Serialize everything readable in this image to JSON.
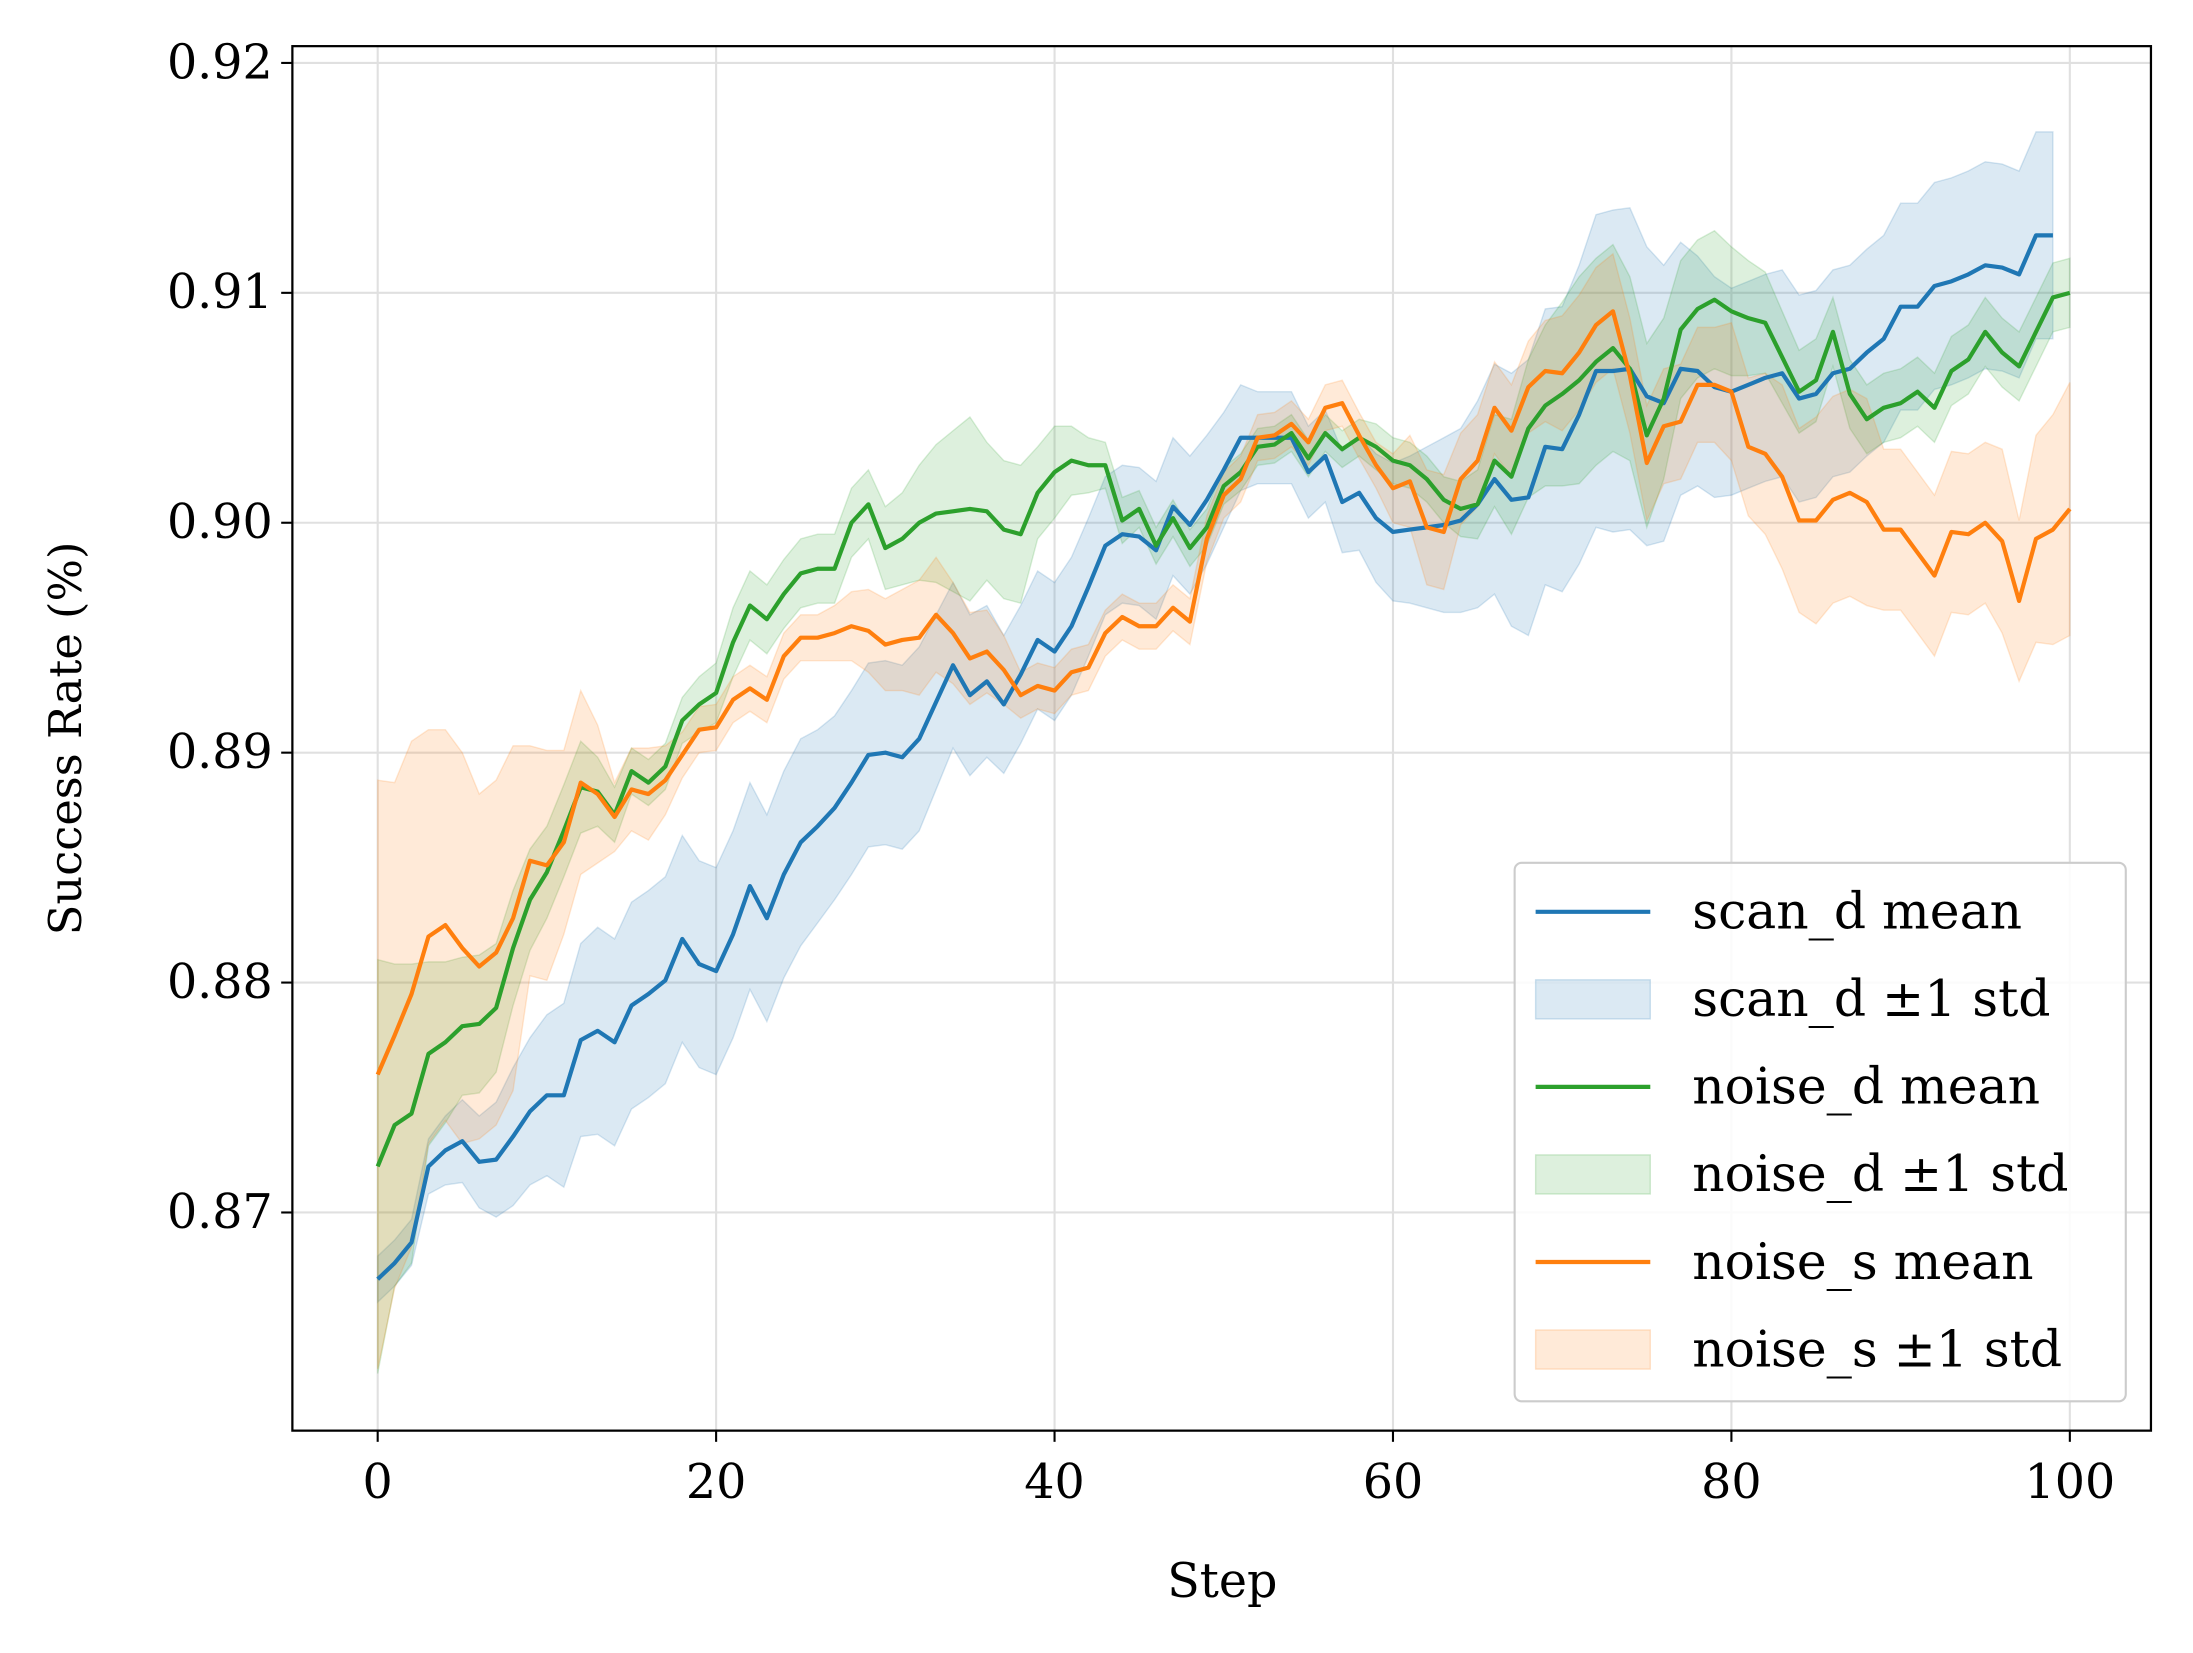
{
  "chart_data": {
    "type": "line",
    "xlabel": "Step",
    "ylabel": "Success Rate (%)",
    "xlim": [
      -5,
      105
    ],
    "ylim": [
      0.8605,
      0.9205
    ],
    "xticks": [
      0,
      20,
      40,
      60,
      80,
      100
    ],
    "xtick_labels": [
      "0",
      "20",
      "40",
      "60",
      "80",
      "100"
    ],
    "yticks": [
      0.87,
      0.88,
      0.89,
      0.9,
      0.91,
      0.92
    ],
    "ytick_labels": [
      "0.87",
      "0.88",
      "0.89",
      "0.90",
      "0.91",
      "0.92"
    ],
    "grid": true,
    "legend_position": "lower-right",
    "series": [
      {
        "name": "scan_d mean",
        "band_name": "scan_d ±1 std",
        "color": "#1f77b4",
        "mean": [
          0.8671,
          0.8678,
          0.8687,
          0.872,
          0.8727,
          0.8731,
          0.8722,
          0.8723,
          0.8733,
          0.8744,
          0.8751,
          0.8751,
          0.8775,
          0.8779,
          0.8774,
          0.879,
          0.8795,
          0.8801,
          0.8819,
          0.8808,
          0.8805,
          0.8821,
          0.8842,
          0.8828,
          0.8847,
          0.8861,
          0.8868,
          0.8876,
          0.8887,
          0.8899,
          0.89,
          0.8898,
          0.8906,
          0.8922,
          0.8938,
          0.8925,
          0.8931,
          0.8921,
          0.8934,
          0.8949,
          0.8944,
          0.8955,
          0.8972,
          0.899,
          0.8995,
          0.8994,
          0.8988,
          0.9007,
          0.8999,
          0.901,
          0.9023,
          0.9037,
          0.9037,
          0.9037,
          0.9037,
          0.9022,
          0.9029,
          0.9009,
          0.9013,
          0.9002,
          0.8996,
          0.8997,
          0.8998,
          0.8999,
          0.9001,
          0.9008,
          0.9019,
          0.901,
          0.9011,
          0.9033,
          0.9032,
          0.9047,
          0.9066,
          0.9066,
          0.9067,
          0.9055,
          0.9052,
          0.9067,
          0.9066,
          0.9059,
          0.9057,
          0.906,
          0.9063,
          0.9065,
          0.9054,
          0.9056,
          0.9065,
          0.9067,
          0.9074,
          0.908,
          0.9094,
          0.9094,
          0.9103,
          0.9105,
          0.9108,
          0.9112,
          0.9111,
          0.9108,
          0.9125,
          0.9125
        ],
        "std": [
          0.001,
          0.001,
          0.001,
          0.0012,
          0.0015,
          0.0018,
          0.002,
          0.0025,
          0.003,
          0.0032,
          0.0035,
          0.004,
          0.0042,
          0.0045,
          0.0045,
          0.0045,
          0.0045,
          0.0045,
          0.0045,
          0.0045,
          0.0045,
          0.0045,
          0.0045,
          0.0045,
          0.0045,
          0.0045,
          0.0042,
          0.004,
          0.004,
          0.004,
          0.004,
          0.004,
          0.004,
          0.0038,
          0.0036,
          0.0035,
          0.0033,
          0.003,
          0.003,
          0.003,
          0.003,
          0.003,
          0.003,
          0.003,
          0.003,
          0.003,
          0.003,
          0.003,
          0.003,
          0.0028,
          0.0025,
          0.0023,
          0.002,
          0.002,
          0.002,
          0.002,
          0.002,
          0.0022,
          0.0025,
          0.0028,
          0.003,
          0.0032,
          0.0035,
          0.0038,
          0.004,
          0.0045,
          0.005,
          0.0055,
          0.006,
          0.006,
          0.0062,
          0.0065,
          0.0068,
          0.007,
          0.007,
          0.0065,
          0.006,
          0.0055,
          0.005,
          0.0048,
          0.0045,
          0.0045,
          0.0045,
          0.0045,
          0.0045,
          0.0045,
          0.0045,
          0.0045,
          0.0045,
          0.0045,
          0.0045,
          0.0045,
          0.0045,
          0.0045,
          0.0045,
          0.0045,
          0.0045,
          0.0045,
          0.0045,
          0.0045
        ]
      },
      {
        "name": "noise_d mean",
        "band_name": "noise_d ±1 std",
        "color": "#2ca02c",
        "mean": [
          0.872,
          0.8738,
          0.8743,
          0.8769,
          0.8774,
          0.8781,
          0.8782,
          0.8789,
          0.8815,
          0.8836,
          0.8848,
          0.8866,
          0.8885,
          0.8883,
          0.8873,
          0.8892,
          0.8887,
          0.8894,
          0.8914,
          0.8921,
          0.8926,
          0.8948,
          0.8964,
          0.8958,
          0.8969,
          0.8978,
          0.898,
          0.898,
          0.9,
          0.9008,
          0.8989,
          0.8993,
          0.9,
          0.9004,
          0.9005,
          0.9006,
          0.9005,
          0.8997,
          0.8995,
          0.9013,
          0.9022,
          0.9027,
          0.9025,
          0.9025,
          0.9001,
          0.9006,
          0.899,
          0.9002,
          0.8989,
          0.8998,
          0.9016,
          0.9022,
          0.9033,
          0.9034,
          0.9039,
          0.9028,
          0.9039,
          0.9032,
          0.9037,
          0.9033,
          0.9027,
          0.9025,
          0.9019,
          0.901,
          0.9006,
          0.9008,
          0.9027,
          0.902,
          0.9041,
          0.9051,
          0.9056,
          0.9062,
          0.907,
          0.9076,
          0.9067,
          0.9038,
          0.9054,
          0.9084,
          0.9093,
          0.9097,
          0.9092,
          0.9089,
          0.9087,
          0.9072,
          0.9057,
          0.9062,
          0.9083,
          0.9056,
          0.9045,
          0.905,
          0.9052,
          0.9057,
          0.905,
          0.9066,
          0.9071,
          0.9083,
          0.9074,
          0.9068,
          0.9083,
          0.9098,
          0.91
        ],
        "std": [
          0.009,
          0.007,
          0.0065,
          0.004,
          0.0035,
          0.003,
          0.003,
          0.0028,
          0.0025,
          0.0022,
          0.002,
          0.002,
          0.002,
          0.0015,
          0.0012,
          0.001,
          0.001,
          0.001,
          0.001,
          0.0012,
          0.0013,
          0.0015,
          0.0015,
          0.0015,
          0.0015,
          0.0015,
          0.0015,
          0.0015,
          0.0015,
          0.0015,
          0.0018,
          0.002,
          0.0025,
          0.003,
          0.0035,
          0.004,
          0.003,
          0.003,
          0.003,
          0.002,
          0.002,
          0.0015,
          0.0012,
          0.001,
          0.001,
          0.0008,
          0.0008,
          0.0008,
          0.0008,
          0.0008,
          0.0008,
          0.0008,
          0.0008,
          0.0008,
          0.0008,
          0.0008,
          0.0008,
          0.0008,
          0.0008,
          0.001,
          0.001,
          0.001,
          0.001,
          0.001,
          0.0012,
          0.0015,
          0.002,
          0.0025,
          0.003,
          0.0035,
          0.004,
          0.0045,
          0.0045,
          0.0045,
          0.004,
          0.004,
          0.0035,
          0.003,
          0.003,
          0.003,
          0.0028,
          0.0025,
          0.0022,
          0.002,
          0.0018,
          0.0018,
          0.0015,
          0.0015,
          0.0015,
          0.0015,
          0.0015,
          0.0015,
          0.0015,
          0.0015,
          0.0015,
          0.0015,
          0.0015,
          0.0015,
          0.0015,
          0.0015,
          0.0015
        ]
      },
      {
        "name": "noise_s mean",
        "band_name": "noise_s ±1 std",
        "color": "#ff7f0e",
        "mean": [
          0.876,
          0.8777,
          0.8795,
          0.882,
          0.8825,
          0.8815,
          0.8807,
          0.8813,
          0.8828,
          0.8853,
          0.8851,
          0.8861,
          0.8887,
          0.8882,
          0.8872,
          0.8884,
          0.8882,
          0.8888,
          0.8899,
          0.891,
          0.8911,
          0.8923,
          0.8928,
          0.8923,
          0.8942,
          0.895,
          0.895,
          0.8952,
          0.8955,
          0.8953,
          0.8947,
          0.8949,
          0.895,
          0.896,
          0.8952,
          0.8941,
          0.8944,
          0.8936,
          0.8925,
          0.8929,
          0.8927,
          0.8935,
          0.8937,
          0.8952,
          0.8959,
          0.8955,
          0.8955,
          0.8963,
          0.8957,
          0.8993,
          0.9012,
          0.9019,
          0.9037,
          0.9038,
          0.9043,
          0.9035,
          0.905,
          0.9052,
          0.9038,
          0.9025,
          0.9015,
          0.9018,
          0.8998,
          0.8996,
          0.9019,
          0.9027,
          0.905,
          0.904,
          0.9059,
          0.9066,
          0.9065,
          0.9074,
          0.9086,
          0.9092,
          0.9064,
          0.9026,
          0.9042,
          0.9044,
          0.906,
          0.906,
          0.9057,
          0.9033,
          0.903,
          0.902,
          0.9001,
          0.9001,
          0.901,
          0.9013,
          0.9009,
          0.8997,
          0.8997,
          0.8987,
          0.8977,
          0.8996,
          0.8995,
          0.9,
          0.8992,
          0.8966,
          0.8993,
          0.8997,
          0.9006
        ],
        "std": [
          0.0128,
          0.011,
          0.011,
          0.009,
          0.0085,
          0.0085,
          0.0075,
          0.0075,
          0.0075,
          0.005,
          0.005,
          0.004,
          0.004,
          0.003,
          0.0015,
          0.0018,
          0.002,
          0.0015,
          0.001,
          0.001,
          0.001,
          0.001,
          0.001,
          0.001,
          0.001,
          0.001,
          0.001,
          0.0012,
          0.0015,
          0.0018,
          0.002,
          0.0022,
          0.0025,
          0.0025,
          0.0022,
          0.002,
          0.0018,
          0.0015,
          0.001,
          0.001,
          0.001,
          0.001,
          0.001,
          0.001,
          0.001,
          0.001,
          0.001,
          0.001,
          0.001,
          0.001,
          0.001,
          0.001,
          0.001,
          0.001,
          0.001,
          0.001,
          0.001,
          0.001,
          0.001,
          0.001,
          0.0015,
          0.002,
          0.0025,
          0.0025,
          0.002,
          0.002,
          0.002,
          0.002,
          0.002,
          0.0022,
          0.0025,
          0.0025,
          0.0025,
          0.0025,
          0.0025,
          0.0025,
          0.0025,
          0.0025,
          0.0025,
          0.0025,
          0.003,
          0.003,
          0.0035,
          0.004,
          0.004,
          0.0045,
          0.0045,
          0.0045,
          0.0045,
          0.0035,
          0.0035,
          0.0035,
          0.0035,
          0.0035,
          0.0035,
          0.0035,
          0.004,
          0.0035,
          0.0045,
          0.005,
          0.0055
        ]
      }
    ]
  }
}
